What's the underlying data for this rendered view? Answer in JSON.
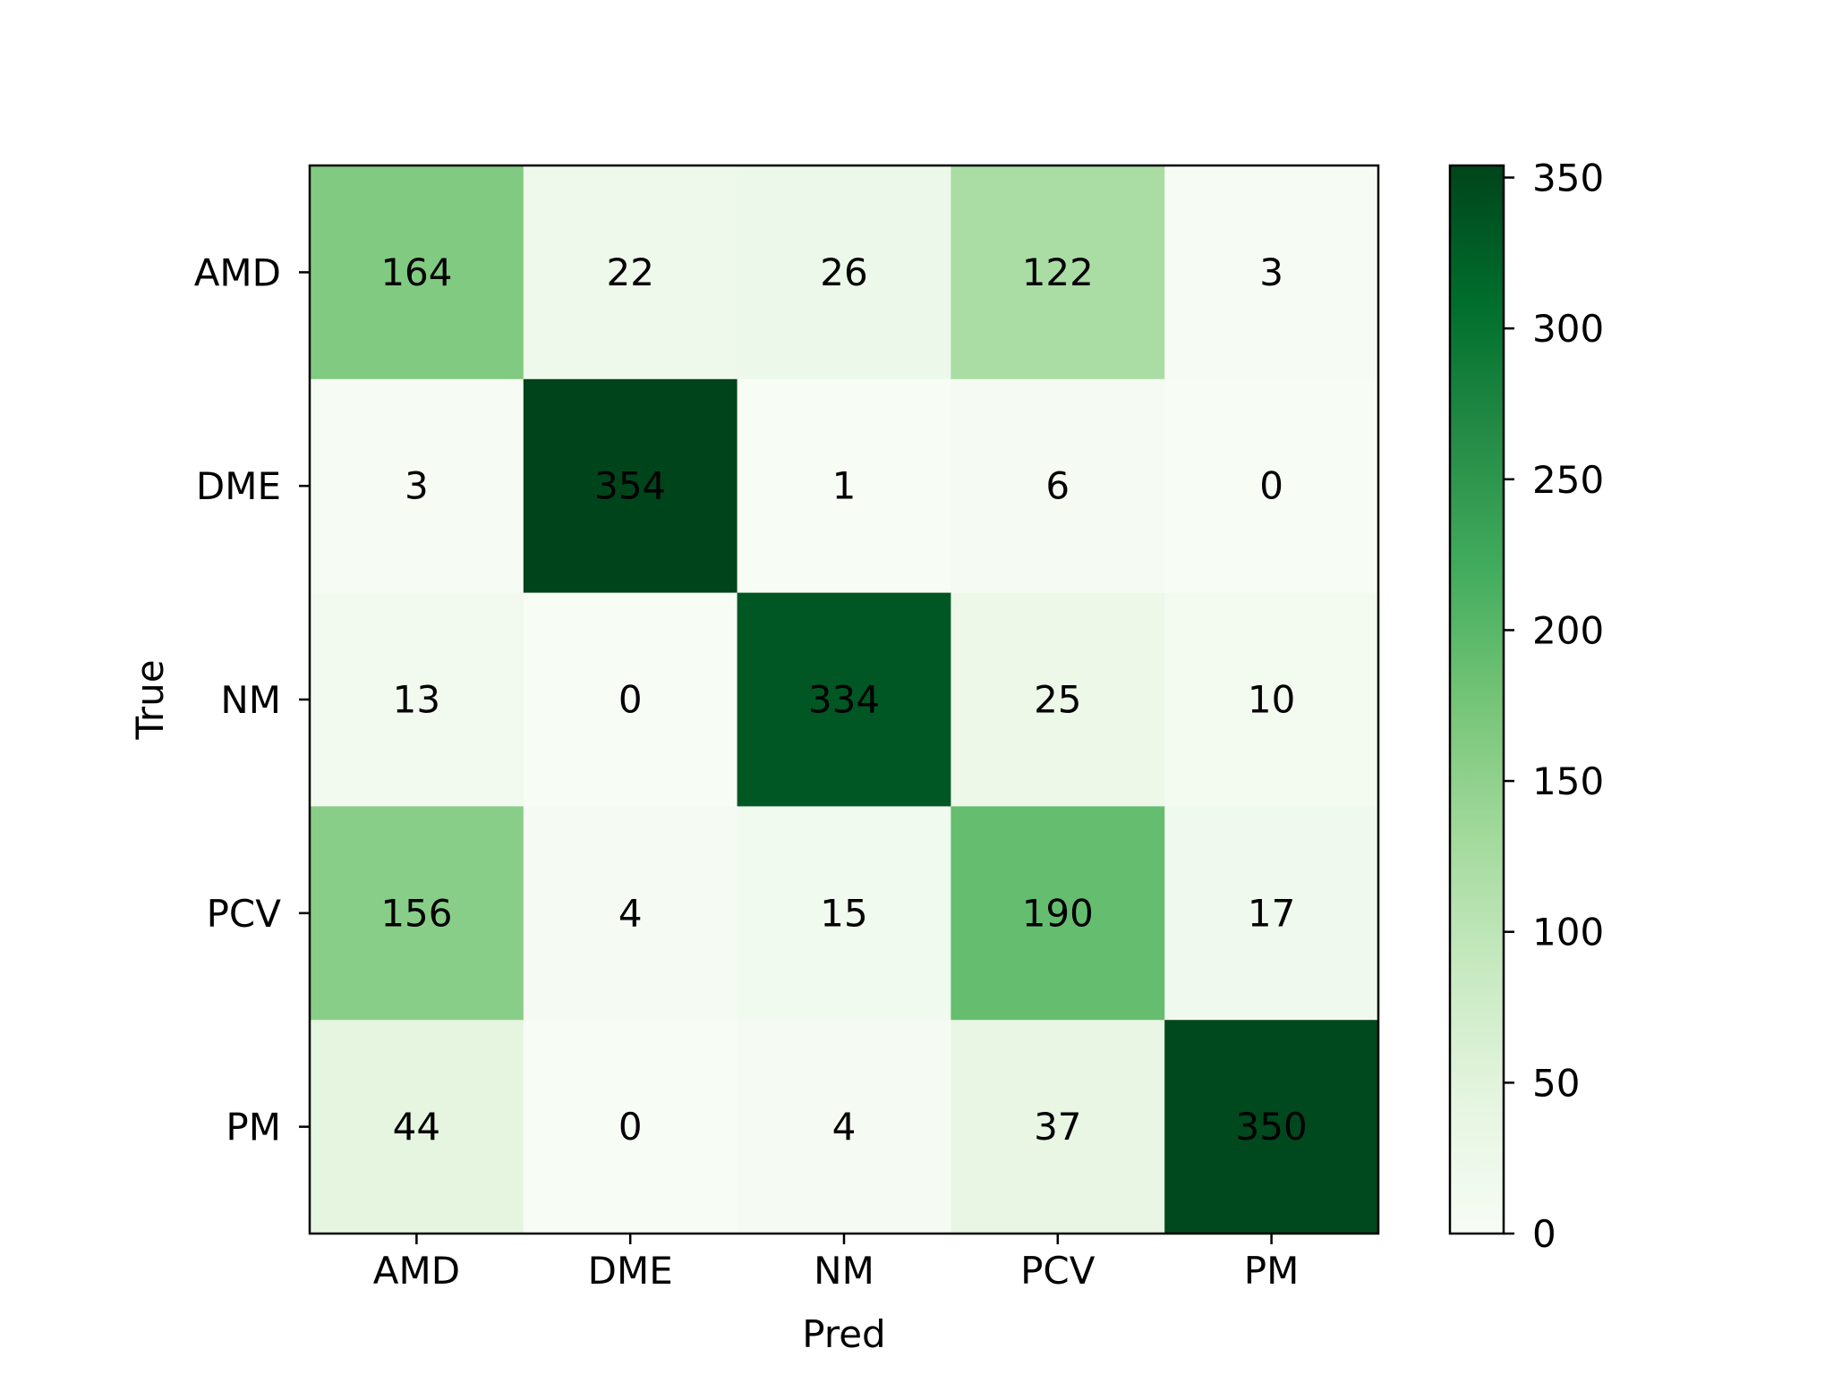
{
  "chart_data": {
    "type": "heatmap",
    "title": "",
    "xlabel": "Pred",
    "ylabel": "True",
    "x_categories": [
      "AMD",
      "DME",
      "NM",
      "PCV",
      "PM"
    ],
    "y_categories": [
      "AMD",
      "DME",
      "NM",
      "PCV",
      "PM"
    ],
    "values": [
      [
        164,
        22,
        26,
        122,
        3
      ],
      [
        3,
        354,
        1,
        6,
        0
      ],
      [
        13,
        0,
        334,
        25,
        10
      ],
      [
        156,
        4,
        15,
        190,
        17
      ],
      [
        44,
        0,
        4,
        37,
        350
      ]
    ],
    "colormap": "Greens",
    "colorbar": {
      "range": [
        0,
        354
      ],
      "ticks": [
        0,
        50,
        100,
        150,
        200,
        250,
        300,
        350
      ]
    },
    "grid": false,
    "legend": "colorbar at right"
  }
}
